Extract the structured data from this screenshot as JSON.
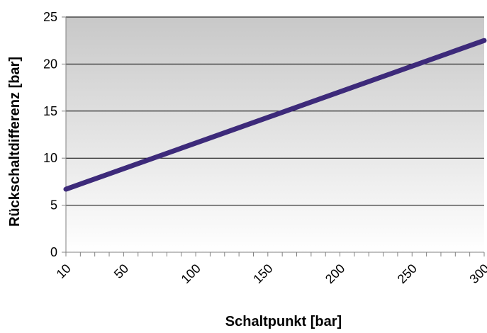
{
  "chart_data": {
    "type": "line",
    "xlabel": "Schaltpunkt [bar]",
    "ylabel": "Rückschaltdifferenz [bar]",
    "x_tick_labels": [
      "10",
      "50",
      "100",
      "150",
      "200",
      "250",
      "300"
    ],
    "y_tick_labels": [
      "0",
      "5",
      "10",
      "15",
      "20",
      "25"
    ],
    "xlim": [
      10,
      300
    ],
    "ylim": [
      0,
      25
    ],
    "grid": "horizontal",
    "series": [
      {
        "x": [
          10,
          300
        ],
        "y": [
          6.7,
          22.5
        ],
        "color": "#3d2a7a"
      }
    ],
    "colors": {
      "plot_gradient_top": "#c8c8c8",
      "plot_gradient_bottom": "#ffffff",
      "grid": "#000000",
      "axis": "#808080"
    }
  }
}
